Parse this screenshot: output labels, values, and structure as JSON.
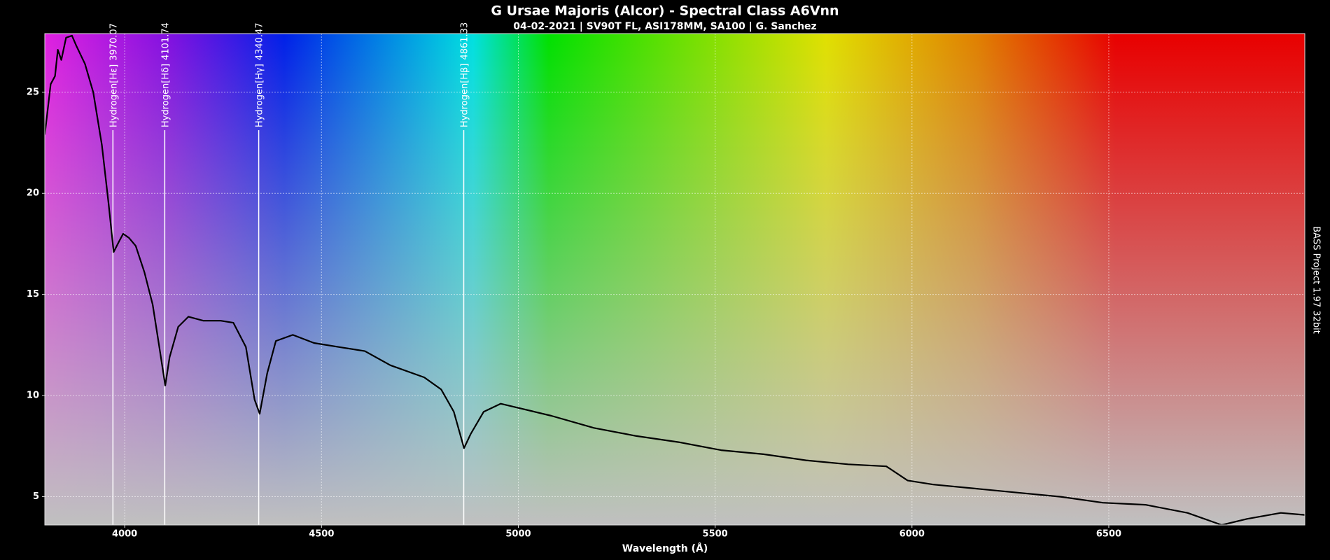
{
  "chart_data": {
    "type": "line",
    "title": "G Ursae Majoris (Alcor) - Spectral Class A6Vnn",
    "subtitle": "04-02-2021 | SV90T FL, ASI178MM, SA100 | G. Sanchez",
    "xlabel": "Wavelength (Å)",
    "side_label": "BASS Project 1.97  32bit",
    "x": [
      3797,
      3812,
      3823,
      3830,
      3839,
      3851,
      3866,
      3877,
      3899,
      3920,
      3942,
      3959,
      3972,
      3985,
      3996,
      4011,
      4028,
      4050,
      4071,
      4088,
      4103,
      4114,
      4136,
      4162,
      4200,
      4244,
      4276,
      4308,
      4330,
      4343,
      4362,
      4384,
      4427,
      4481,
      4545,
      4610,
      4675,
      4761,
      4804,
      4836,
      4862,
      4879,
      4912,
      4955,
      4998,
      5084,
      5192,
      5300,
      5407,
      5515,
      5623,
      5731,
      5838,
      5935,
      5989,
      6054,
      6162,
      6269,
      6377,
      6485,
      6593,
      6700,
      6787,
      6851,
      6937,
      6998
    ],
    "values": [
      22.9,
      25.4,
      25.8,
      27.1,
      26.6,
      27.7,
      27.8,
      27.3,
      26.4,
      25.0,
      22.4,
      19.5,
      17.1,
      17.6,
      18.0,
      17.8,
      17.4,
      16.1,
      14.5,
      12.4,
      10.5,
      11.9,
      13.4,
      13.9,
      13.7,
      13.7,
      13.6,
      12.4,
      9.8,
      9.1,
      11.1,
      12.7,
      13.0,
      12.6,
      12.4,
      12.2,
      11.5,
      10.9,
      10.3,
      9.2,
      7.4,
      8.1,
      9.2,
      9.6,
      9.4,
      9.0,
      8.4,
      8.0,
      7.7,
      7.3,
      7.1,
      6.8,
      6.6,
      6.5,
      5.8,
      5.6,
      5.4,
      5.2,
      5.0,
      4.7,
      4.6,
      4.2,
      3.6,
      3.9,
      4.2,
      4.1
    ],
    "color": "#000000",
    "annotations": [
      {
        "label": "Hydrogen[Hε]",
        "x": 3970.07
      },
      {
        "label": "Hydrogen[Hδ]",
        "x": 4101.74
      },
      {
        "label": "Hydrogen[Hγ]",
        "x": 4340.47
      },
      {
        "label": "Hydrogen[Hβ]",
        "x": 4861.33
      }
    ],
    "xlim": [
      3797,
      6998
    ],
    "ylim": [
      3.6,
      27.9
    ],
    "xticks": [
      4000,
      4500,
      5000,
      5500,
      6000,
      6500
    ],
    "yticks": [
      5,
      10,
      15,
      20,
      25
    ],
    "grid": true
  }
}
